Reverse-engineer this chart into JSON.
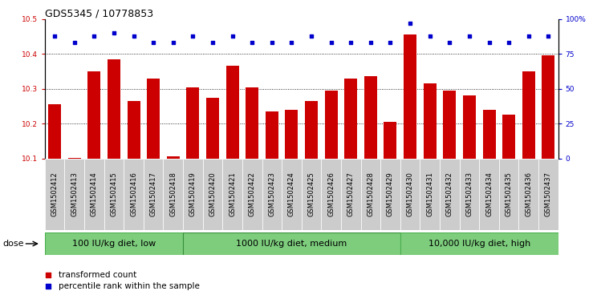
{
  "title": "GDS5345 / 10778853",
  "samples": [
    "GSM1502412",
    "GSM1502413",
    "GSM1502414",
    "GSM1502415",
    "GSM1502416",
    "GSM1502417",
    "GSM1502418",
    "GSM1502419",
    "GSM1502420",
    "GSM1502421",
    "GSM1502422",
    "GSM1502423",
    "GSM1502424",
    "GSM1502425",
    "GSM1502426",
    "GSM1502427",
    "GSM1502428",
    "GSM1502429",
    "GSM1502430",
    "GSM1502431",
    "GSM1502432",
    "GSM1502433",
    "GSM1502434",
    "GSM1502435",
    "GSM1502436",
    "GSM1502437"
  ],
  "bar_values": [
    10.255,
    10.101,
    10.35,
    10.385,
    10.265,
    10.33,
    10.107,
    10.305,
    10.275,
    10.365,
    10.305,
    10.235,
    10.24,
    10.265,
    10.295,
    10.33,
    10.335,
    10.205,
    10.455,
    10.315,
    10.295,
    10.282,
    10.24,
    10.225,
    10.35,
    10.395
  ],
  "percentile_values": [
    88,
    83,
    88,
    90,
    88,
    83,
    83,
    88,
    83,
    88,
    83,
    83,
    83,
    88,
    83,
    83,
    83,
    83,
    97,
    88,
    83,
    88,
    83,
    83,
    88,
    88
  ],
  "bar_color": "#cc0000",
  "dot_color": "#0000cc",
  "ylim_left": [
    10.1,
    10.5
  ],
  "ylim_right": [
    0,
    100
  ],
  "yticks_left": [
    10.1,
    10.2,
    10.3,
    10.4,
    10.5
  ],
  "yticks_right": [
    0,
    25,
    50,
    75,
    100
  ],
  "ytick_labels_right": [
    "0",
    "25",
    "50",
    "75",
    "100%"
  ],
  "groups": [
    {
      "label": "100 IU/kg diet, low",
      "start": 0,
      "end": 7
    },
    {
      "label": "1000 IU/kg diet, medium",
      "start": 7,
      "end": 18
    },
    {
      "label": "10,000 IU/kg diet, high",
      "start": 18,
      "end": 26
    }
  ],
  "group_color": "#7dcd7d",
  "group_edge_colors": [
    "#5ab85a",
    "#3ea83e",
    "#5ab85a"
  ],
  "dose_label": "dose",
  "legend_items": [
    {
      "label": "transformed count",
      "color": "#cc0000"
    },
    {
      "label": "percentile rank within the sample",
      "color": "#0000cc"
    }
  ],
  "xtick_bg_color": "#cccccc",
  "plot_bg_color": "#ffffff",
  "title_fontsize": 9,
  "tick_fontsize": 6.5,
  "xtick_fontsize": 6,
  "group_fontsize": 8,
  "legend_fontsize": 7.5
}
